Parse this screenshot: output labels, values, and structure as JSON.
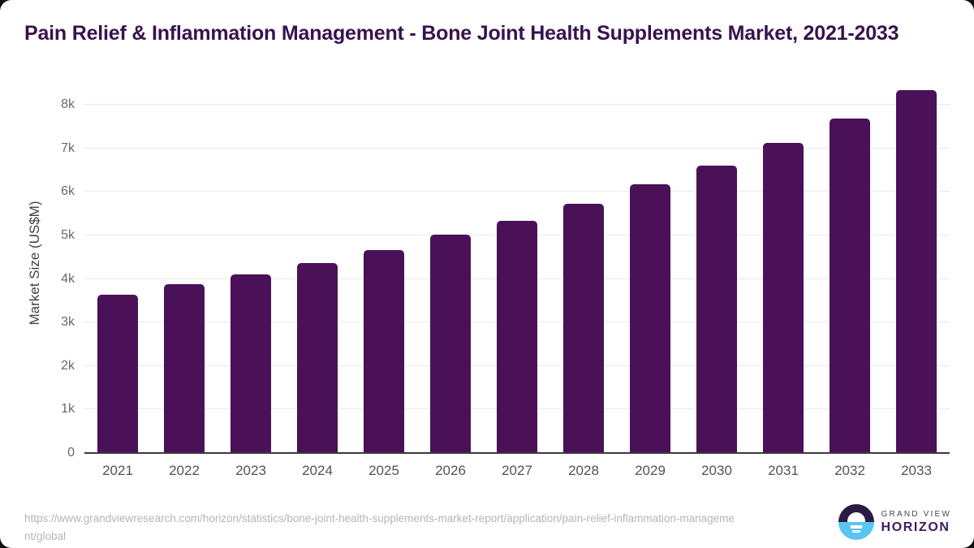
{
  "title": "Pain Relief & Inflammation Management - Bone Joint Health Supplements Market, 2021-2033",
  "chart_data": {
    "type": "bar",
    "title": "Pain Relief & Inflammation Management - Bone Joint Health Supplements Market, 2021-2033",
    "categories": [
      "2021",
      "2022",
      "2023",
      "2024",
      "2025",
      "2026",
      "2027",
      "2028",
      "2029",
      "2030",
      "2031",
      "2032",
      "2033"
    ],
    "values": [
      3630,
      3870,
      4110,
      4370,
      4670,
      5010,
      5340,
      5720,
      6180,
      6610,
      7120,
      7680,
      8330
    ],
    "xlabel": "",
    "ylabel": "Market Size (US$M)",
    "ylim": [
      0,
      8000
    ],
    "ytick_values": [
      0,
      1000,
      2000,
      3000,
      4000,
      5000,
      6000,
      7000,
      8000
    ],
    "ytick_labels": [
      "0",
      "1k",
      "2k",
      "3k",
      "4k",
      "5k",
      "6k",
      "7k",
      "8k"
    ],
    "grid": true,
    "legend": false,
    "bar_color": "#4a1158"
  },
  "footer": {
    "source_url": "https://www.grandviewresearch.com/horizon/statistics/bone-joint-health-supplements-market-report/application/pain-relief-inflammation-management/global",
    "logo": {
      "line1": "GRAND VIEW",
      "line2": "HORIZON"
    }
  },
  "colors": {
    "bar": "#4a1158",
    "title": "#38124e",
    "axis_title": "#414143",
    "axis_label": "#535356",
    "tick_label": "#69696b",
    "grid": "#e9e9e9",
    "axis_line": "#3a3a3a",
    "url_text": "#b5b5b5",
    "logo_purple": "#3d1c5a",
    "logo_gray": "#4b4553",
    "icon_top": "#2c1a45",
    "icon_blue": "#59c5f1"
  }
}
